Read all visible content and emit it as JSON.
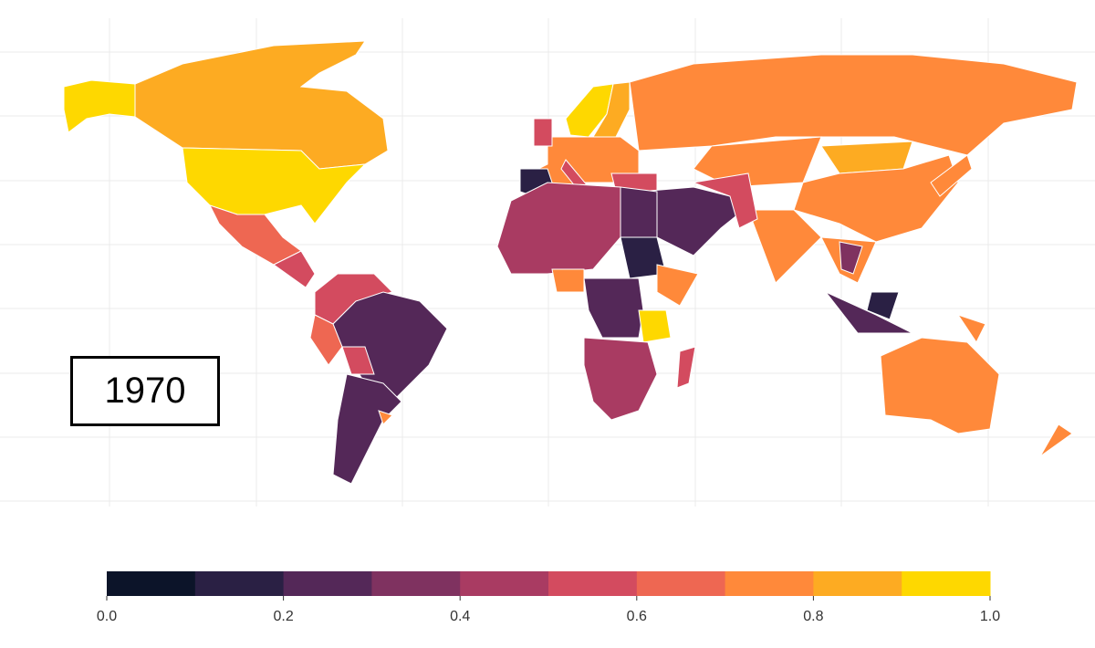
{
  "year_label": "1970",
  "legend": {
    "ticks": [
      "0.0",
      "0.2",
      "0.4",
      "0.6",
      "0.8",
      "1.0"
    ],
    "bin_colors": [
      "#0c1429",
      "#2a2044",
      "#542858",
      "#7f3260",
      "#a93b62",
      "#d34b5f",
      "#ee6752",
      "#ff893a",
      "#fdab22",
      "#fed800"
    ],
    "range": [
      0,
      1
    ]
  },
  "map_values": {
    "alaska": 0.95,
    "canada": 0.85,
    "usa": 0.95,
    "mexico": 0.65,
    "central_america": 0.55,
    "brazil": 0.25,
    "colombia_venezuela": 0.55,
    "peru": 0.65,
    "bolivia": 0.55,
    "argentina_chile": 0.25,
    "uruguay": 0.75,
    "scandinavia": 0.95,
    "finland": 0.85,
    "europe": 0.75,
    "spain": 0.15,
    "uk": 0.55,
    "italy": 0.55,
    "russia": 0.75,
    "central_asia": 0.75,
    "mongolia": 0.85,
    "china": 0.75,
    "india": 0.75,
    "middle_east": 0.25,
    "iran_pakistan": 0.55,
    "turkey": 0.55,
    "se_asia": 0.75,
    "indochina": 0.35,
    "japan": 0.75,
    "indonesia": 0.25,
    "borneo": 0.15,
    "png": 0.75,
    "australia": 0.75,
    "new_zealand": 0.75,
    "north_africa": 0.45,
    "egypt": 0.25,
    "sudan": 0.15,
    "horn_of_africa": 0.75,
    "nigeria": 0.75,
    "central_africa": 0.25,
    "tanzania": 0.95,
    "southern_africa": 0.45,
    "madagascar": 0.55
  }
}
